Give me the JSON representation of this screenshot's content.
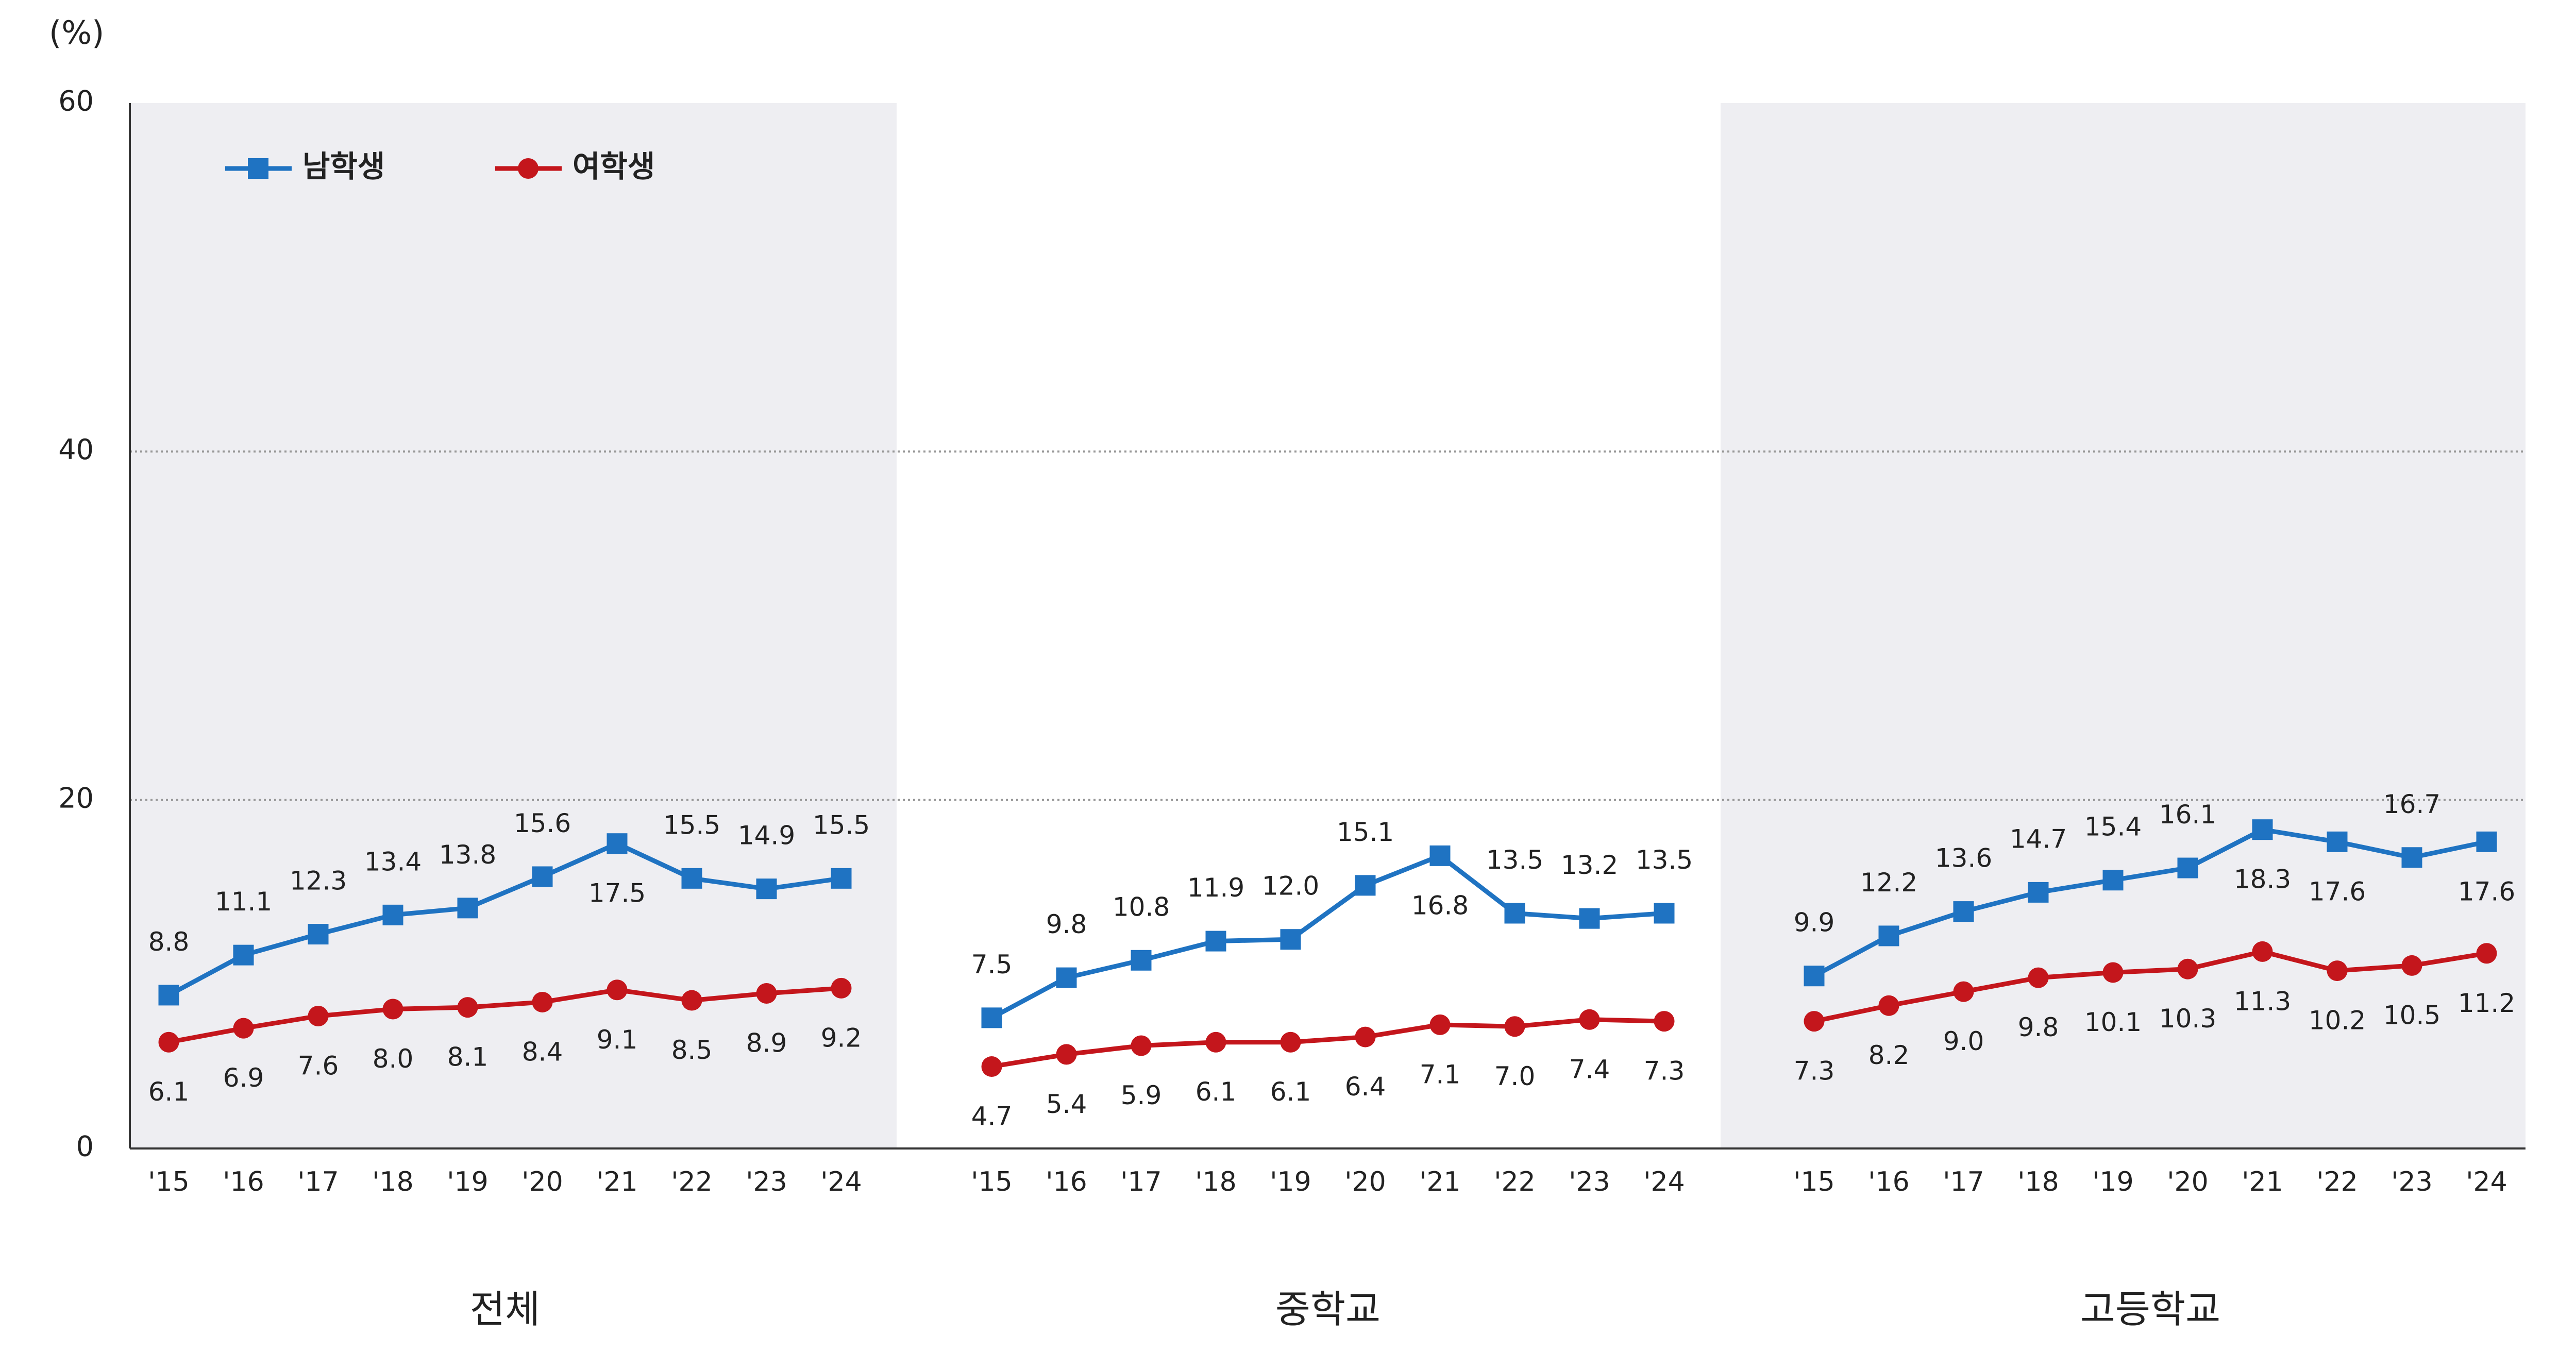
{
  "chart_data": {
    "type": "line",
    "y_label": "(%)",
    "ylim": [
      0,
      60
    ],
    "yticks": [
      0,
      20,
      40,
      60
    ],
    "grid": true,
    "legend": "upper left",
    "categories": [
      "'15",
      "'16",
      "'17",
      "'18",
      "'19",
      "'20",
      "'21",
      "'22",
      "'23",
      "'24"
    ],
    "series": [
      {
        "name": "남학생",
        "color": "#1f73c2",
        "marker": "square"
      },
      {
        "name": "여학생",
        "color": "#c4161c",
        "marker": "circle"
      }
    ],
    "panels": [
      {
        "title": "전체",
        "series": [
          {
            "values": [
              8.8,
              11.1,
              12.3,
              13.4,
              13.8,
              15.6,
              17.5,
              15.5,
              14.9,
              15.5
            ],
            "value_labels": [
              "8.8",
              "11.1",
              "12.3",
              "13.4",
              "13.8",
              "15.6",
              "17.5",
              "15.5",
              "14.9",
              "15.5"
            ]
          },
          {
            "values": [
              6.1,
              6.9,
              7.6,
              8.0,
              8.1,
              8.4,
              9.1,
              8.5,
              8.9,
              9.2
            ],
            "value_labels": [
              "6.1",
              "6.9",
              "7.6",
              "8.0",
              "8.1",
              "8.4",
              "9.1",
              "8.5",
              "8.9",
              "9.2"
            ]
          }
        ]
      },
      {
        "title": "중학교",
        "series": [
          {
            "values": [
              7.5,
              9.8,
              10.8,
              11.9,
              12.0,
              15.1,
              16.8,
              13.5,
              13.2,
              13.5
            ],
            "value_labels": [
              "7.5",
              "9.8",
              "10.8",
              "11.9",
              "12.0",
              "15.1",
              "16.8",
              "13.5",
              "13.2",
              "13.5"
            ]
          },
          {
            "values": [
              4.7,
              5.4,
              5.9,
              6.1,
              6.1,
              6.4,
              7.1,
              7.0,
              7.4,
              7.3
            ],
            "value_labels": [
              "4.7",
              "5.4",
              "5.9",
              "6.1",
              "6.1",
              "6.4",
              "7.1",
              "7.0",
              "7.4",
              "7.3"
            ]
          }
        ]
      },
      {
        "title": "고등학교",
        "series": [
          {
            "values": [
              9.9,
              12.2,
              13.6,
              14.7,
              15.4,
              16.1,
              18.3,
              17.6,
              16.7,
              17.6
            ],
            "value_labels": [
              "9.9",
              "12.2",
              "13.6",
              "14.7",
              "15.4",
              "16.1",
              "18.3",
              "17.6",
              "16.7",
              "17.6"
            ]
          },
          {
            "values": [
              7.3,
              8.2,
              9.0,
              9.8,
              10.1,
              10.3,
              11.3,
              10.2,
              10.5,
              11.2
            ],
            "value_labels": [
              "7.3",
              "8.2",
              "9.0",
              "9.8",
              "10.1",
              "10.3",
              "11.3",
              "10.2",
              "10.5",
              "11.2"
            ]
          }
        ]
      }
    ]
  }
}
